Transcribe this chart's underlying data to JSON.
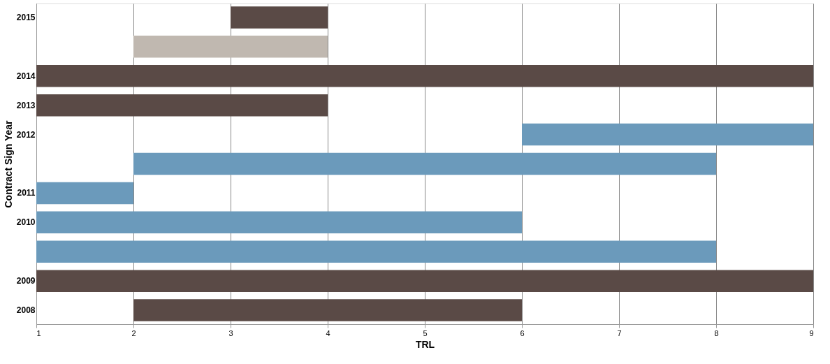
{
  "chart_data": {
    "type": "bar",
    "orientation": "horizontal",
    "xlabel": "TRL",
    "ylabel": "Contract Sign Year",
    "categories": [
      "2015",
      null,
      "2014",
      "2013",
      "2012",
      null,
      "2011",
      "2010",
      null,
      "2009",
      "2008"
    ],
    "base": [
      3,
      2,
      1,
      1,
      6,
      2,
      1,
      1,
      1,
      1,
      2
    ],
    "values": [
      1,
      2,
      8,
      3,
      3,
      6,
      1,
      5,
      7,
      8,
      4
    ],
    "colors": [
      "#5a4a46",
      "#c0b8b0",
      "#5a4a46",
      "#5a4a46",
      "#6b9abb",
      "#6b9abb",
      "#6b9abb",
      "#6b9abb",
      "#6b9abb",
      "#5a4a46",
      "#5a4a46"
    ],
    "xlim": [
      1,
      9
    ],
    "xticks": [
      1,
      2,
      3,
      4,
      5,
      6,
      7,
      8,
      9
    ],
    "grid": "x"
  }
}
